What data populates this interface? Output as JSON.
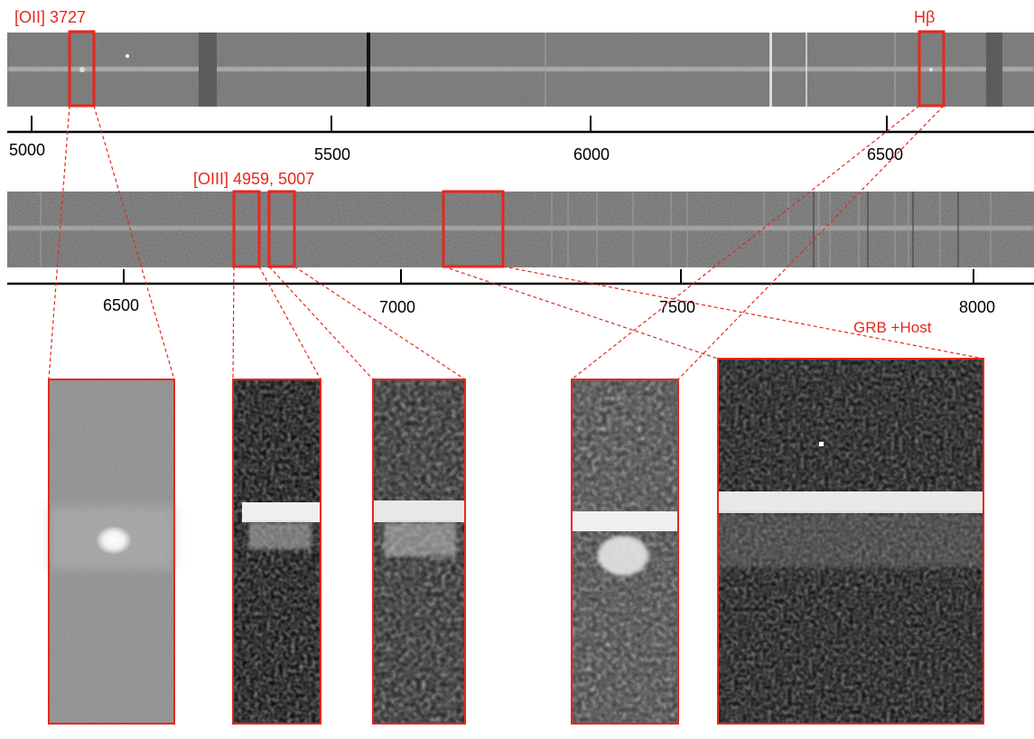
{
  "annotations": {
    "oii": "[OII] 3727",
    "hbeta": "Hβ",
    "oiii": "[OIII] 4959, 5007",
    "grb_host": "GRB +Host"
  },
  "axis_top": {
    "ticks": [
      {
        "label": "5000",
        "value": 5000
      },
      {
        "label": "5500",
        "value": 5500
      },
      {
        "label": "6000",
        "value": 6000
      },
      {
        "label": "6500",
        "value": 6500
      }
    ]
  },
  "axis_bottom": {
    "ticks": [
      {
        "label": "6500",
        "value": 6500
      },
      {
        "label": "7000",
        "value": 7000
      },
      {
        "label": "7500",
        "value": 7500
      },
      {
        "label": "8000",
        "value": 8000
      }
    ]
  },
  "colors": {
    "highlight": "#e8261c",
    "axis": "#000000",
    "spectrum_background": "#6f6f6f",
    "trace": "#cfcfcf"
  }
}
